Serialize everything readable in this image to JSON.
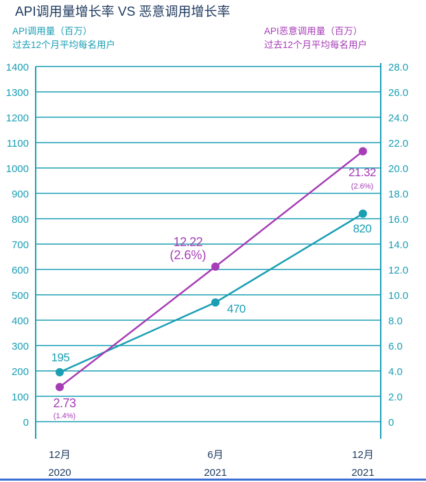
{
  "chart_data": {
    "type": "line",
    "title": "API调用量增长率 VS 恶意调用增长率",
    "left_axis": {
      "title_line1": "API调用量（百万）",
      "title_line2": "过去12个月平均每名用户",
      "range": [
        0,
        1400
      ],
      "ticks": [
        "0",
        "100",
        "200",
        "300",
        "400",
        "500",
        "600",
        "700",
        "800",
        "900",
        "1000",
        "1100",
        "1200",
        "1300",
        "1400"
      ]
    },
    "right_axis": {
      "title_line1": "API恶意调用量（百万）",
      "title_line2": "过去12个月平均每名用户",
      "range": [
        0,
        28
      ],
      "ticks": [
        "0",
        "2.0",
        "4.0",
        "6.0",
        "8.0",
        "10.0",
        "12.0",
        "14.0",
        "16.0",
        "18.0",
        "20.0",
        "22.0",
        "24.0",
        "26.0",
        "28.0"
      ]
    },
    "categories": [
      {
        "month": "12月",
        "year": "2020"
      },
      {
        "month": "6月",
        "year": "2021"
      },
      {
        "month": "12月",
        "year": "2021"
      }
    ],
    "series": [
      {
        "name": "API调用量（百万）",
        "axis": "left",
        "color": "#1a9eb4",
        "values": [
          195,
          470,
          820
        ],
        "labels": [
          "195",
          "470",
          "820"
        ]
      },
      {
        "name": "API恶意调用量（百万）",
        "axis": "right",
        "color": "#a63cb6",
        "values": [
          2.73,
          12.22,
          21.32
        ],
        "labels": [
          "2.73",
          "12.22",
          "21.32"
        ],
        "sublabels": [
          "(1.4%)",
          "(2.6%)",
          "(2.6%)"
        ]
      }
    ],
    "grid_color": "#1a9eb4"
  }
}
